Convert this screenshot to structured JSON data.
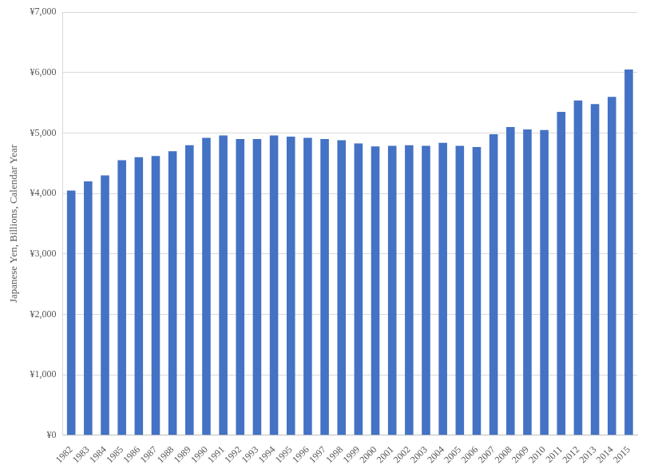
{
  "chart_data": {
    "type": "bar",
    "y_label": "Japanese Yen, Billions, Calendar Year",
    "categories": [
      "1982",
      "1983",
      "1984",
      "1985",
      "1986",
      "1987",
      "1988",
      "1989",
      "1990",
      "1991",
      "1992",
      "1993",
      "1994",
      "1995",
      "1996",
      "1997",
      "1998",
      "1999",
      "2000",
      "2001",
      "2002",
      "2003",
      "2004",
      "2005",
      "2006",
      "2007",
      "2008",
      "2009",
      "2010",
      "2011",
      "2012",
      "2013",
      "2014",
      "2015"
    ],
    "values": [
      4050,
      4200,
      4300,
      4550,
      4600,
      4620,
      4700,
      4800,
      4920,
      4960,
      4900,
      4900,
      4960,
      4940,
      4920,
      4900,
      4880,
      4830,
      4780,
      4790,
      4800,
      4790,
      4840,
      4790,
      4770,
      4980,
      5100,
      5060,
      5050,
      5350,
      5540,
      5480,
      5600,
      6050
    ],
    "color": "#4472c4",
    "ylim": [
      0,
      7000
    ],
    "yticks": [
      {
        "value": 0,
        "label": "¥0"
      },
      {
        "value": 1000,
        "label": "¥1,000"
      },
      {
        "value": 2000,
        "label": "¥2,000"
      },
      {
        "value": 3000,
        "label": "¥3,000"
      },
      {
        "value": 4000,
        "label": "¥4,000"
      },
      {
        "value": 5000,
        "label": "¥5,000"
      },
      {
        "value": 6000,
        "label": "¥6,000"
      },
      {
        "value": 7000,
        "label": "¥7,000"
      }
    ],
    "grid": true
  }
}
